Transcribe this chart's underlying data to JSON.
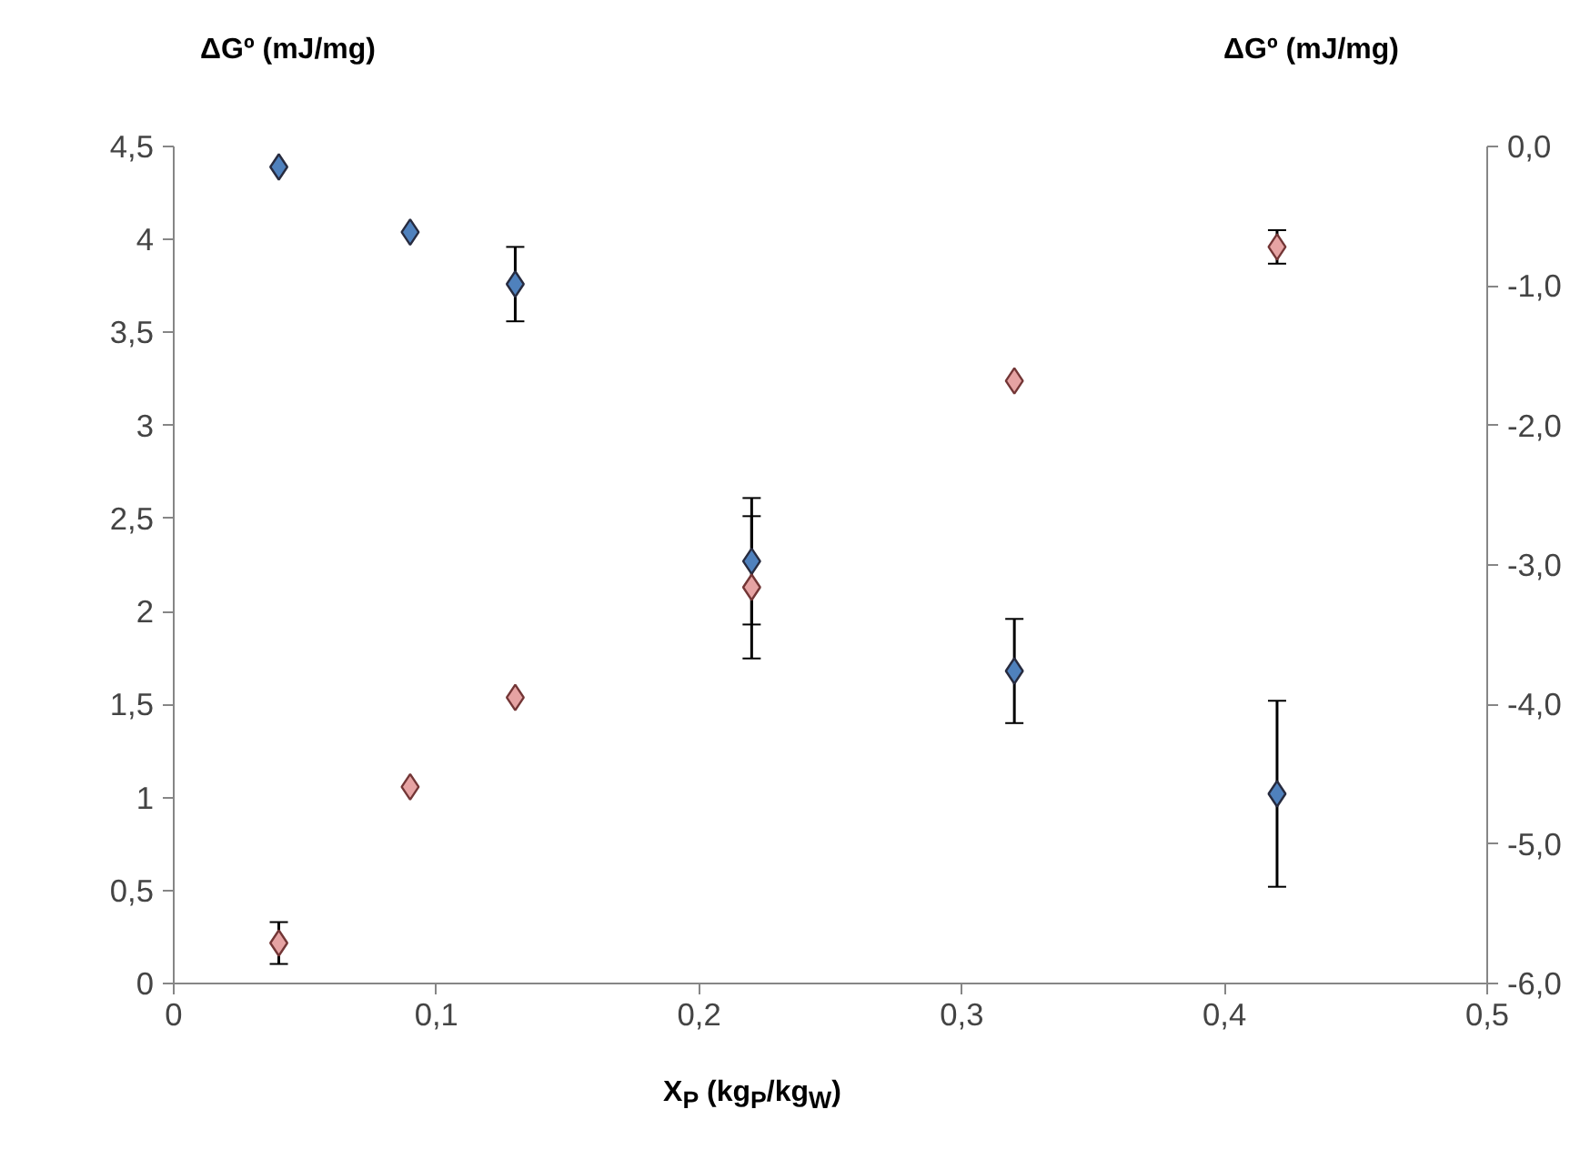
{
  "chart_data": {
    "type": "scatter",
    "xlabel": "X$_{P}$ (kg$_{P}$/kg$_{W}$)",
    "ylabel": "ΔGº (mJ/mg)",
    "y2label": "ΔGº (mJ/mg)",
    "marker": "diamond",
    "grid": false,
    "x": [
      0.04,
      0.09,
      0.13,
      0.22,
      0.32,
      0.42
    ],
    "series": [
      {
        "color": "#4f81bd",
        "values": [
          4.39,
          4.04,
          3.76,
          2.27,
          1.68,
          1.02
        ],
        "errors": [
          null,
          null,
          0.2,
          0.34,
          0.28,
          0.5
        ]
      },
      {
        "color": "#e6a3a3",
        "axis": "y2",
        "values": [
          -5.71,
          -4.59,
          -3.95,
          -3.16,
          -1.68,
          -0.72
        ],
        "errors": [
          0.15,
          null,
          null,
          0.51,
          null,
          0.12
        ]
      }
    ],
    "xlim": [
      0,
      0.5
    ],
    "xticks": [
      0,
      {
        "value": 0.1,
        "label": "0,1"
      },
      {
        "value": 0.2,
        "label": "0,2"
      },
      {
        "value": 0.3,
        "label": "0,3"
      },
      {
        "value": 0.4,
        "label": "0,4"
      },
      {
        "value": 0.5,
        "label": "0,5"
      }
    ],
    "ylim": [
      0,
      4.5
    ],
    "yticks": [
      0,
      {
        "value": 0.5,
        "label": "0,5"
      },
      1,
      {
        "value": 1.5,
        "label": "1,5"
      },
      2,
      {
        "value": 2.5,
        "label": "2,5"
      },
      3,
      {
        "value": 3.5,
        "label": "3,5"
      },
      4,
      {
        "value": 4.5,
        "label": "4,5"
      }
    ],
    "y2lim": [
      -6,
      0
    ],
    "y2ticks": [
      {
        "value": -6,
        "label": "-6,0"
      },
      {
        "value": -5,
        "label": "-5,0"
      },
      {
        "value": -4,
        "label": "-4,0"
      },
      {
        "value": -3,
        "label": "-3,0"
      },
      {
        "value": -2,
        "label": "-2,0"
      },
      {
        "value": -1,
        "label": "-1,0"
      },
      {
        "value": 0,
        "label": "0,0"
      }
    ]
  }
}
